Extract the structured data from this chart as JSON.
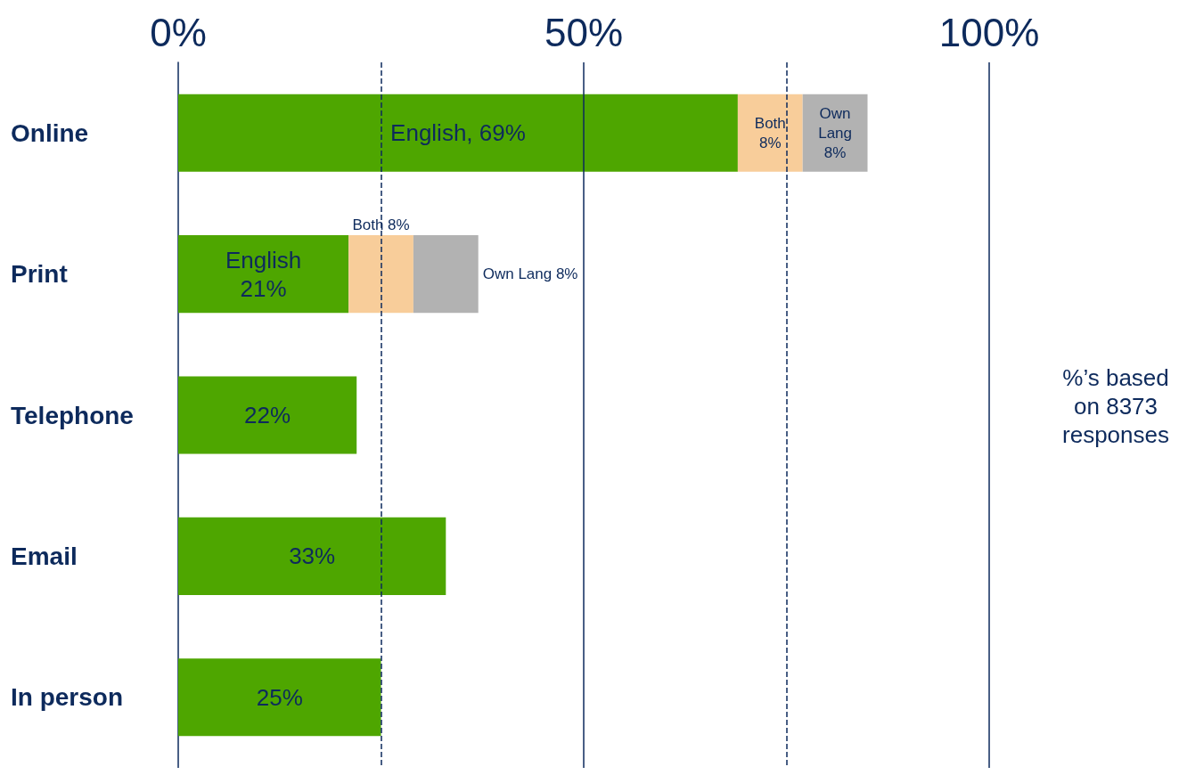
{
  "chart_data": {
    "type": "bar",
    "orientation": "horizontal",
    "stacked": true,
    "categories": [
      "Online",
      "Print",
      "Telephone",
      "Email",
      "In person"
    ],
    "series": [
      {
        "color": "#4ea600",
        "values": [
          69,
          21,
          22,
          33,
          25
        ],
        "value_labels": [
          "English, 69%",
          "English\n21%",
          "22%",
          "33%",
          "25%"
        ]
      },
      {
        "color": "#f8cd9a",
        "values": [
          8,
          8,
          null,
          null,
          null
        ],
        "value_labels": [
          "Both\n8%",
          "Both 8%",
          null,
          null,
          null
        ]
      },
      {
        "color": "#b2b2b2",
        "values": [
          8,
          8,
          null,
          null,
          null
        ],
        "value_labels": [
          "Own\nLang\n8%",
          "Own Lang 8%",
          null,
          null,
          null
        ]
      }
    ],
    "xlim": [
      0,
      100
    ],
    "xticks": [
      {
        "value": 0,
        "label": "0%"
      },
      {
        "value": 50,
        "label": "50%"
      },
      {
        "value": 100,
        "label": "100%"
      }
    ],
    "ref_lines": [
      {
        "axis": "x",
        "value": 25,
        "line_style": "dashed"
      },
      {
        "axis": "x",
        "value": 50,
        "line_style": "solid"
      },
      {
        "axis": "x",
        "value": 75,
        "line_style": "dashed"
      },
      {
        "axis": "x",
        "value": 100,
        "line_style": "solid"
      }
    ],
    "annotations": [
      "%’s based\non 8373\nresponses"
    ]
  }
}
